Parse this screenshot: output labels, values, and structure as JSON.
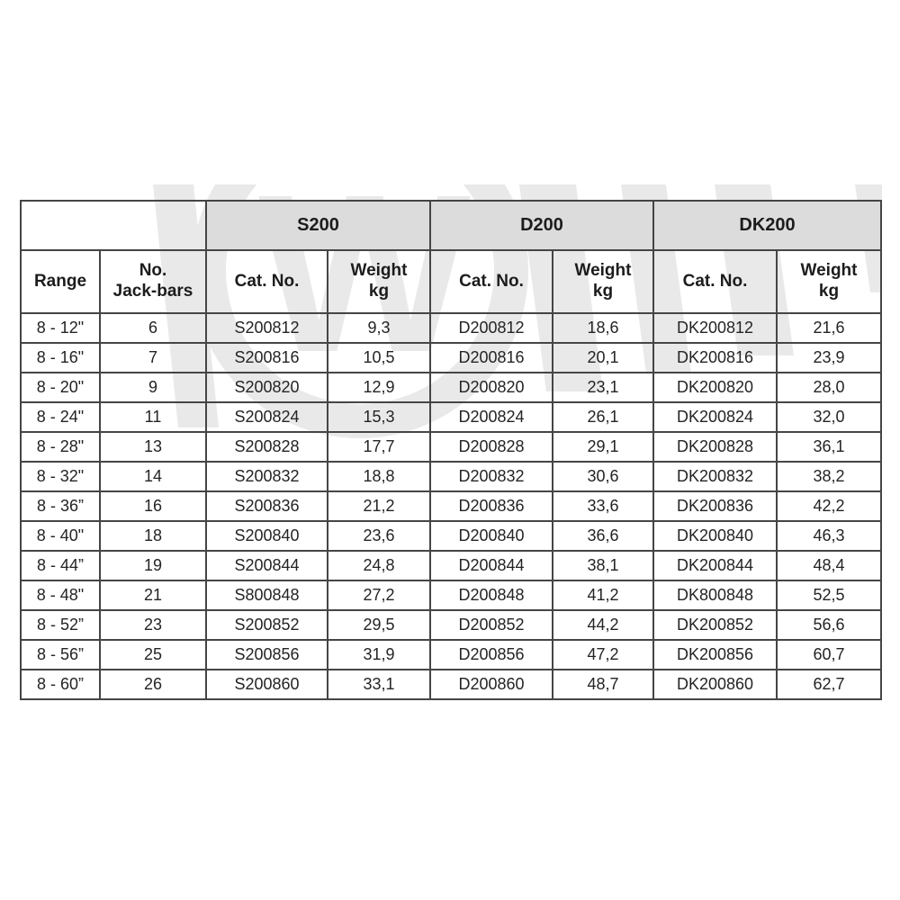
{
  "watermark": {
    "letter": "W",
    "color": "#e9e9e9"
  },
  "colors": {
    "group_header_bg": "#dcdcdc",
    "border": "#454545",
    "text": "#242424",
    "page_bg": "#ffffff"
  },
  "table": {
    "groups": [
      {
        "label": "S200"
      },
      {
        "label": "D200"
      },
      {
        "label": "DK200"
      }
    ],
    "columns": {
      "range": "Range",
      "jack_bars": "No.\nJack-bars",
      "cat_no": "Cat. No.",
      "weight": "Weight\nkg"
    },
    "rows": [
      {
        "range": "8 - 12\"",
        "jack_bars": "6",
        "s200_cat": "S200812",
        "s200_wt": "9,3",
        "d200_cat": "D200812",
        "d200_wt": "18,6",
        "dk200_cat": "DK200812",
        "dk200_wt": "21,6"
      },
      {
        "range": "8 - 16\"",
        "jack_bars": "7",
        "s200_cat": "S200816",
        "s200_wt": "10,5",
        "d200_cat": "D200816",
        "d200_wt": "20,1",
        "dk200_cat": "DK200816",
        "dk200_wt": "23,9"
      },
      {
        "range": "8 - 20\"",
        "jack_bars": "9",
        "s200_cat": "S200820",
        "s200_wt": "12,9",
        "d200_cat": "D200820",
        "d200_wt": "23,1",
        "dk200_cat": "DK200820",
        "dk200_wt": "28,0"
      },
      {
        "range": "8 - 24\"",
        "jack_bars": "11",
        "s200_cat": "S200824",
        "s200_wt": "15,3",
        "d200_cat": "D200824",
        "d200_wt": "26,1",
        "dk200_cat": "DK200824",
        "dk200_wt": "32,0"
      },
      {
        "range": "8 - 28\"",
        "jack_bars": "13",
        "s200_cat": "S200828",
        "s200_wt": "17,7",
        "d200_cat": "D200828",
        "d200_wt": "29,1",
        "dk200_cat": "DK200828",
        "dk200_wt": "36,1"
      },
      {
        "range": "8 - 32\"",
        "jack_bars": "14",
        "s200_cat": "S200832",
        "s200_wt": "18,8",
        "d200_cat": "D200832",
        "d200_wt": "30,6",
        "dk200_cat": "DK200832",
        "dk200_wt": "38,2"
      },
      {
        "range": "8 - 36”",
        "jack_bars": "16",
        "s200_cat": "S200836",
        "s200_wt": "21,2",
        "d200_cat": "D200836",
        "d200_wt": "33,6",
        "dk200_cat": "DK200836",
        "dk200_wt": "42,2"
      },
      {
        "range": "8 - 40\"",
        "jack_bars": "18",
        "s200_cat": "S200840",
        "s200_wt": "23,6",
        "d200_cat": "D200840",
        "d200_wt": "36,6",
        "dk200_cat": "DK200840",
        "dk200_wt": "46,3"
      },
      {
        "range": "8 - 44”",
        "jack_bars": "19",
        "s200_cat": "S200844",
        "s200_wt": "24,8",
        "d200_cat": "D200844",
        "d200_wt": "38,1",
        "dk200_cat": "DK200844",
        "dk200_wt": "48,4"
      },
      {
        "range": "8 - 48\"",
        "jack_bars": "21",
        "s200_cat": "S800848",
        "s200_wt": "27,2",
        "d200_cat": "D200848",
        "d200_wt": "41,2",
        "dk200_cat": "DK800848",
        "dk200_wt": "52,5"
      },
      {
        "range": "8 - 52”",
        "jack_bars": "23",
        "s200_cat": "S200852",
        "s200_wt": "29,5",
        "d200_cat": "D200852",
        "d200_wt": "44,2",
        "dk200_cat": "DK200852",
        "dk200_wt": "56,6"
      },
      {
        "range": "8 - 56”",
        "jack_bars": "25",
        "s200_cat": "S200856",
        "s200_wt": "31,9",
        "d200_cat": "D200856",
        "d200_wt": "47,2",
        "dk200_cat": "DK200856",
        "dk200_wt": "60,7"
      },
      {
        "range": "8 - 60”",
        "jack_bars": "26",
        "s200_cat": "S200860",
        "s200_wt": "33,1",
        "d200_cat": "D200860",
        "d200_wt": "48,7",
        "dk200_cat": "DK200860",
        "dk200_wt": "62,7"
      }
    ]
  }
}
